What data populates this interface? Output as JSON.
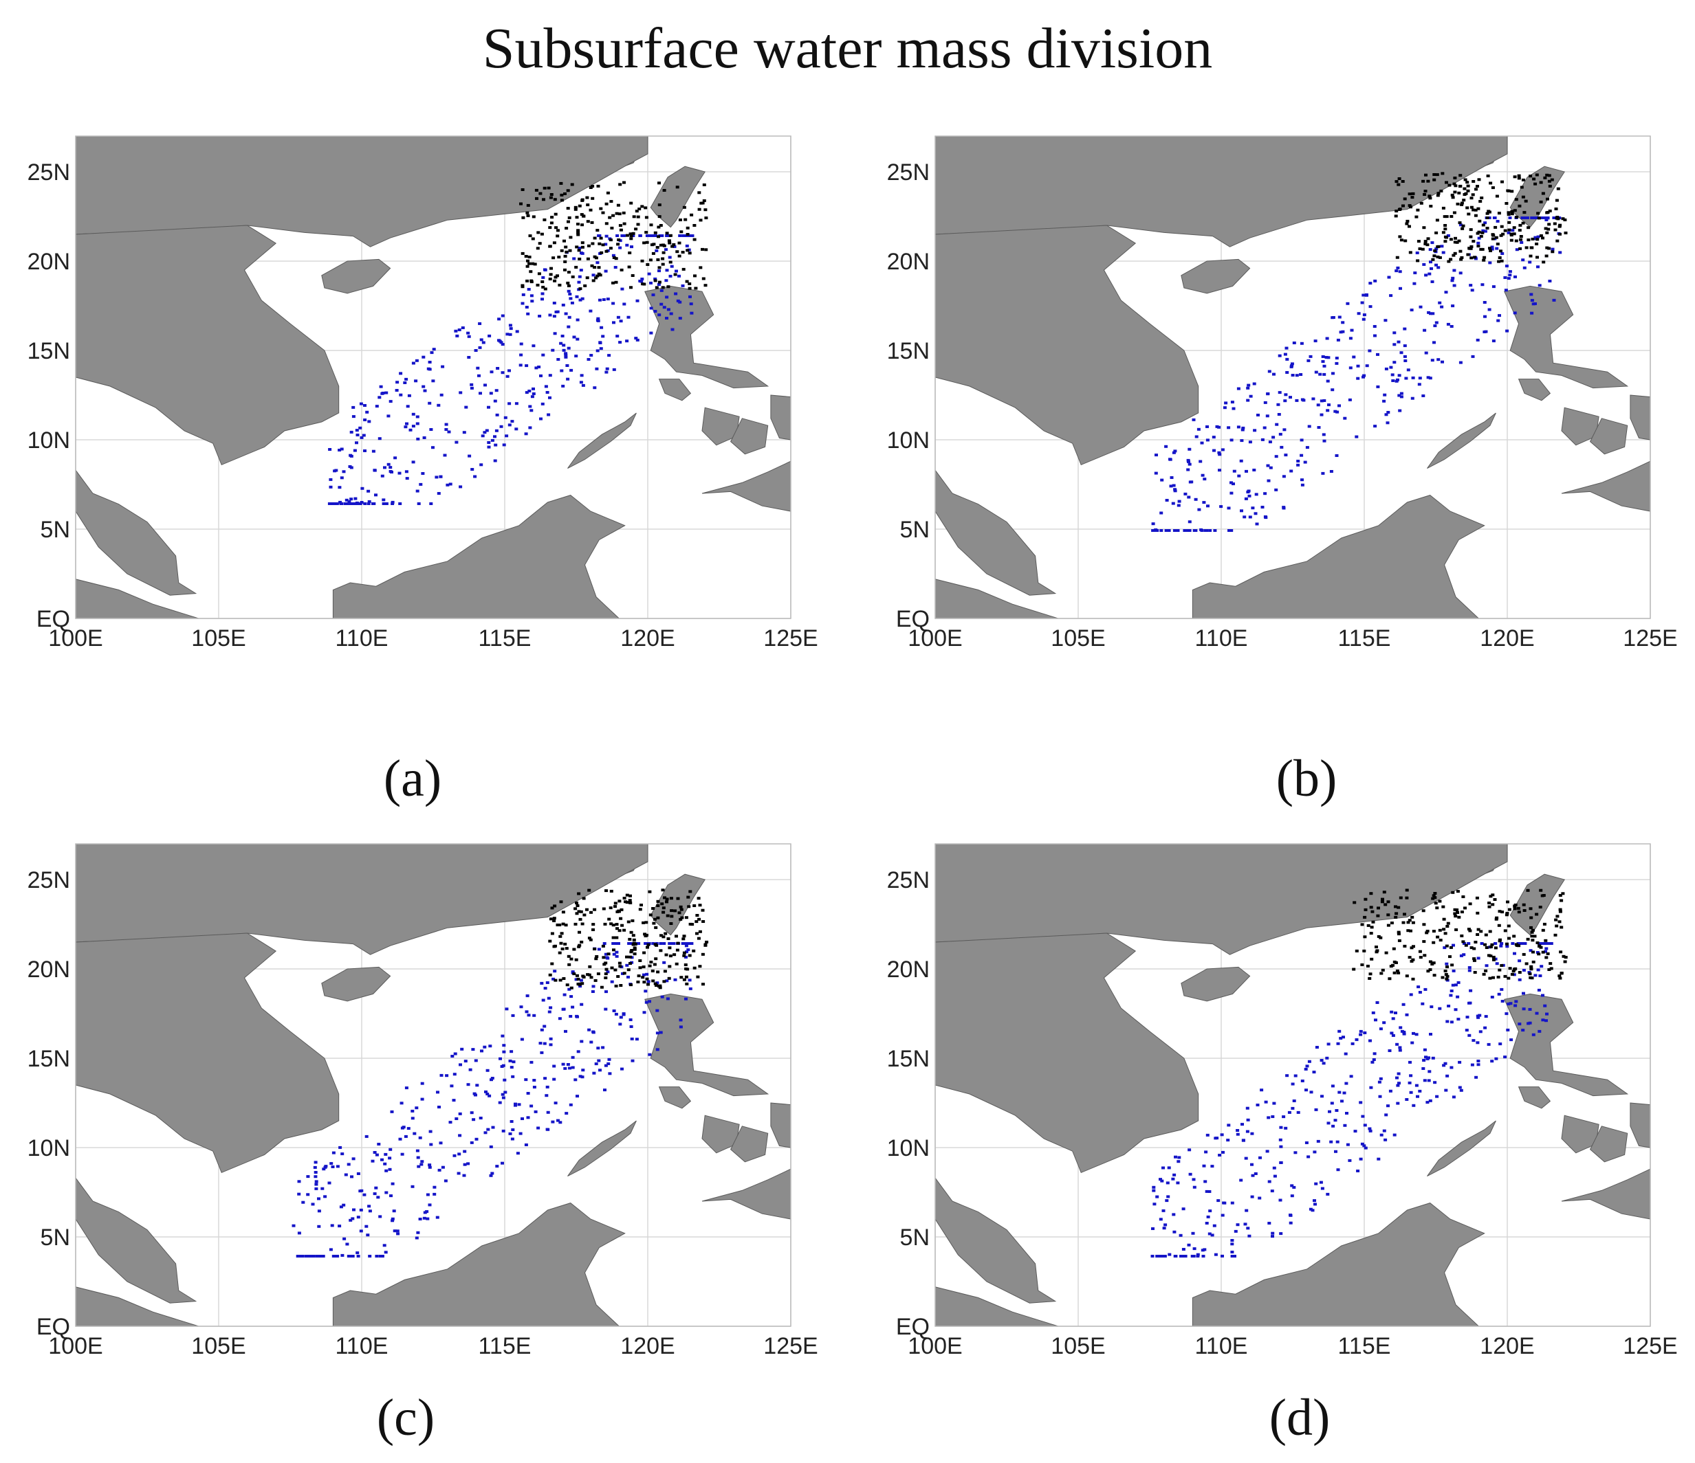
{
  "title": "Subsurface water mass division",
  "colors": {
    "land": "#8c8c8c",
    "ocean": "#ffffff",
    "grid": "#d8d8d8",
    "blue_points": "#1515c8",
    "black_points": "#000000"
  },
  "axes": {
    "x_ticks": [
      "100E",
      "105E",
      "110E",
      "115E",
      "120E",
      "125E"
    ],
    "y_ticks": [
      "EQ",
      "5N",
      "10N",
      "15N",
      "20N",
      "25N"
    ],
    "lon_range": [
      100,
      125
    ],
    "lat_range": [
      0,
      27
    ]
  },
  "panels": [
    {
      "label": "(a)",
      "blue_extent": {
        "lon": [
          108.8,
          121.5
        ],
        "lat": [
          6.5,
          21.5
        ]
      },
      "black_extent": {
        "lon": [
          115.5,
          122
        ],
        "lat": [
          18.5,
          24.5
        ]
      }
    },
    {
      "label": "(b)",
      "blue_extent": {
        "lon": [
          107.5,
          121.8
        ],
        "lat": [
          5,
          22.5
        ]
      },
      "black_extent": {
        "lon": [
          116,
          122
        ],
        "lat": [
          20,
          25
        ]
      }
    },
    {
      "label": "(c)",
      "blue_extent": {
        "lon": [
          107.5,
          121.5
        ],
        "lat": [
          4,
          21.5
        ]
      },
      "black_extent": {
        "lon": [
          116.5,
          122
        ],
        "lat": [
          19,
          24.5
        ]
      }
    },
    {
      "label": "(d)",
      "blue_extent": {
        "lon": [
          107.5,
          121.5
        ],
        "lat": [
          4,
          21.5
        ]
      },
      "black_extent": {
        "lon": [
          114.5,
          122
        ],
        "lat": [
          19.5,
          24.5
        ]
      }
    }
  ]
}
